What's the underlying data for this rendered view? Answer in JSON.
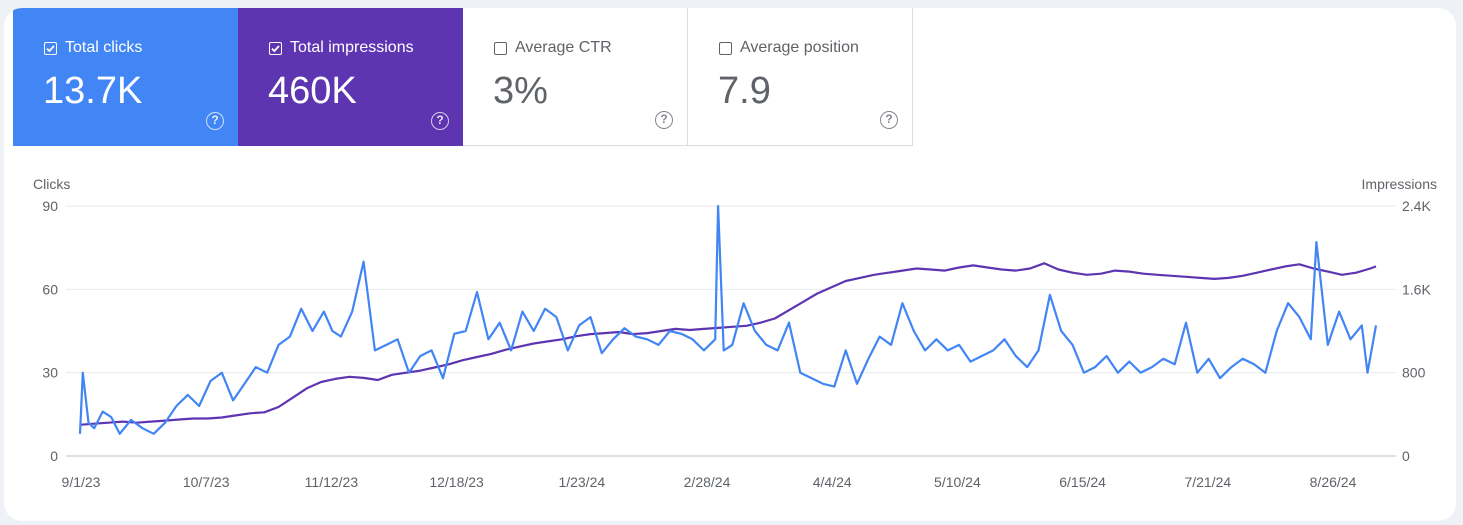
{
  "metrics": [
    {
      "label": "Total clicks",
      "value": "13.7K",
      "checked": true,
      "color": "#4285f4"
    },
    {
      "label": "Total impressions",
      "value": "460K",
      "checked": true,
      "color": "#5e35b1"
    },
    {
      "label": "Average CTR",
      "value": "3%",
      "checked": false,
      "color": "#ffffff"
    },
    {
      "label": "Average position",
      "value": "7.9",
      "checked": false,
      "color": "#ffffff"
    }
  ],
  "help_glyph": "?",
  "chart_data": {
    "type": "line",
    "left_axis_label": "Clicks",
    "right_axis_label": "Impressions",
    "left_ticks": [
      "90",
      "60",
      "30",
      "0"
    ],
    "right_ticks": [
      "2.4K",
      "1.6K",
      "800",
      "0"
    ],
    "y_left_lim": [
      0,
      90
    ],
    "y_right_lim": [
      0,
      2400
    ],
    "x_tick_labels": [
      "9/1/23",
      "10/7/23",
      "11/12/23",
      "12/18/23",
      "1/23/24",
      "2/28/24",
      "4/4/24",
      "5/10/24",
      "6/15/24",
      "7/21/24",
      "8/26/24"
    ],
    "grid": true,
    "series": [
      {
        "name": "Total clicks",
        "axis": "left",
        "color": "#4285f4",
        "anchors": [
          [
            0,
            8
          ],
          [
            1,
            30
          ],
          [
            3,
            12
          ],
          [
            5,
            10
          ],
          [
            8,
            16
          ],
          [
            11,
            14
          ],
          [
            14,
            8
          ],
          [
            18,
            13
          ],
          [
            22,
            10
          ],
          [
            26,
            8
          ],
          [
            30,
            12
          ],
          [
            34,
            18
          ],
          [
            38,
            22
          ],
          [
            42,
            18
          ],
          [
            46,
            27
          ],
          [
            50,
            30
          ],
          [
            54,
            20
          ],
          [
            58,
            26
          ],
          [
            62,
            32
          ],
          [
            66,
            30
          ],
          [
            70,
            40
          ],
          [
            74,
            43
          ],
          [
            78,
            53
          ],
          [
            82,
            45
          ],
          [
            86,
            52
          ],
          [
            89,
            45
          ],
          [
            92,
            43
          ],
          [
            96,
            52
          ],
          [
            100,
            70
          ],
          [
            104,
            38
          ],
          [
            108,
            40
          ],
          [
            112,
            42
          ],
          [
            116,
            30
          ],
          [
            120,
            36
          ],
          [
            124,
            38
          ],
          [
            128,
            28
          ],
          [
            132,
            44
          ],
          [
            136,
            45
          ],
          [
            140,
            59
          ],
          [
            144,
            42
          ],
          [
            148,
            48
          ],
          [
            152,
            38
          ],
          [
            156,
            52
          ],
          [
            160,
            45
          ],
          [
            164,
            53
          ],
          [
            168,
            50
          ],
          [
            172,
            38
          ],
          [
            176,
            47
          ],
          [
            180,
            50
          ],
          [
            184,
            37
          ],
          [
            188,
            42
          ],
          [
            192,
            46
          ],
          [
            196,
            43
          ],
          [
            200,
            42
          ],
          [
            204,
            40
          ],
          [
            208,
            45
          ],
          [
            212,
            44
          ],
          [
            216,
            42
          ],
          [
            220,
            38
          ],
          [
            224,
            42
          ],
          [
            225,
            90
          ],
          [
            227,
            38
          ],
          [
            230,
            40
          ],
          [
            234,
            55
          ],
          [
            238,
            45
          ],
          [
            242,
            40
          ],
          [
            246,
            38
          ],
          [
            250,
            48
          ],
          [
            254,
            30
          ],
          [
            258,
            28
          ],
          [
            262,
            26
          ],
          [
            266,
            25
          ],
          [
            270,
            38
          ],
          [
            274,
            26
          ],
          [
            278,
            35
          ],
          [
            282,
            43
          ],
          [
            286,
            40
          ],
          [
            290,
            55
          ],
          [
            294,
            45
          ],
          [
            298,
            38
          ],
          [
            302,
            42
          ],
          [
            306,
            38
          ],
          [
            310,
            40
          ],
          [
            314,
            34
          ],
          [
            318,
            36
          ],
          [
            322,
            38
          ],
          [
            326,
            42
          ],
          [
            330,
            36
          ],
          [
            334,
            32
          ],
          [
            338,
            38
          ],
          [
            342,
            58
          ],
          [
            346,
            45
          ],
          [
            350,
            40
          ],
          [
            354,
            30
          ],
          [
            358,
            32
          ],
          [
            362,
            36
          ],
          [
            366,
            30
          ],
          [
            370,
            34
          ],
          [
            374,
            30
          ],
          [
            378,
            32
          ],
          [
            382,
            35
          ],
          [
            386,
            33
          ],
          [
            390,
            48
          ],
          [
            394,
            30
          ],
          [
            398,
            35
          ],
          [
            402,
            28
          ],
          [
            406,
            32
          ],
          [
            410,
            35
          ],
          [
            414,
            33
          ],
          [
            418,
            30
          ],
          [
            422,
            45
          ],
          [
            426,
            55
          ],
          [
            430,
            50
          ],
          [
            434,
            42
          ],
          [
            436,
            77
          ],
          [
            440,
            40
          ],
          [
            444,
            52
          ],
          [
            448,
            42
          ],
          [
            452,
            47
          ],
          [
            454,
            30
          ],
          [
            457,
            47
          ]
        ]
      },
      {
        "name": "Total impressions",
        "axis": "right",
        "color": "#5e35b1",
        "anchors": [
          [
            0,
            300
          ],
          [
            5,
            310
          ],
          [
            10,
            320
          ],
          [
            15,
            330
          ],
          [
            20,
            320
          ],
          [
            25,
            330
          ],
          [
            30,
            340
          ],
          [
            35,
            350
          ],
          [
            40,
            360
          ],
          [
            45,
            360
          ],
          [
            50,
            370
          ],
          [
            55,
            390
          ],
          [
            60,
            410
          ],
          [
            65,
            420
          ],
          [
            70,
            470
          ],
          [
            75,
            560
          ],
          [
            80,
            650
          ],
          [
            85,
            710
          ],
          [
            90,
            740
          ],
          [
            95,
            760
          ],
          [
            100,
            750
          ],
          [
            105,
            730
          ],
          [
            110,
            780
          ],
          [
            115,
            800
          ],
          [
            120,
            820
          ],
          [
            125,
            850
          ],
          [
            130,
            880
          ],
          [
            135,
            920
          ],
          [
            140,
            950
          ],
          [
            145,
            980
          ],
          [
            150,
            1020
          ],
          [
            155,
            1050
          ],
          [
            160,
            1080
          ],
          [
            165,
            1100
          ],
          [
            170,
            1120
          ],
          [
            175,
            1150
          ],
          [
            180,
            1170
          ],
          [
            185,
            1180
          ],
          [
            190,
            1190
          ],
          [
            195,
            1170
          ],
          [
            200,
            1180
          ],
          [
            205,
            1200
          ],
          [
            210,
            1220
          ],
          [
            215,
            1210
          ],
          [
            220,
            1220
          ],
          [
            225,
            1230
          ],
          [
            230,
            1240
          ],
          [
            235,
            1250
          ],
          [
            240,
            1280
          ],
          [
            245,
            1320
          ],
          [
            250,
            1400
          ],
          [
            255,
            1480
          ],
          [
            260,
            1560
          ],
          [
            265,
            1620
          ],
          [
            270,
            1680
          ],
          [
            275,
            1710
          ],
          [
            280,
            1740
          ],
          [
            285,
            1760
          ],
          [
            290,
            1780
          ],
          [
            295,
            1800
          ],
          [
            300,
            1790
          ],
          [
            305,
            1780
          ],
          [
            310,
            1810
          ],
          [
            315,
            1830
          ],
          [
            320,
            1810
          ],
          [
            325,
            1790
          ],
          [
            330,
            1780
          ],
          [
            335,
            1800
          ],
          [
            340,
            1850
          ],
          [
            345,
            1790
          ],
          [
            350,
            1760
          ],
          [
            355,
            1740
          ],
          [
            360,
            1750
          ],
          [
            365,
            1780
          ],
          [
            370,
            1770
          ],
          [
            375,
            1750
          ],
          [
            380,
            1740
          ],
          [
            385,
            1730
          ],
          [
            390,
            1720
          ],
          [
            395,
            1710
          ],
          [
            400,
            1700
          ],
          [
            405,
            1710
          ],
          [
            410,
            1730
          ],
          [
            415,
            1760
          ],
          [
            420,
            1790
          ],
          [
            425,
            1820
          ],
          [
            430,
            1840
          ],
          [
            435,
            1800
          ],
          [
            440,
            1770
          ],
          [
            445,
            1740
          ],
          [
            450,
            1760
          ],
          [
            455,
            1800
          ],
          [
            457,
            1820
          ]
        ]
      }
    ]
  }
}
